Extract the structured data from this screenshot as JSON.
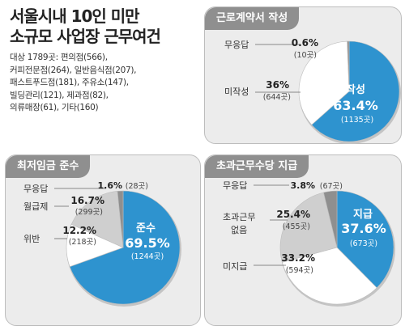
{
  "header": {
    "title_line1": "서울시내 10인 미만",
    "title_line2": "소규모 사업장 근무여건",
    "subtitle_lines": [
      "대상 1789곳: 편의점(566),",
      "커피전문점(264), 일반음식점(207),",
      "패스트푸드점(181), 주유소(147),",
      "빌딩관리(121), 제과점(82),",
      "의류매장(61), 기타(160)"
    ]
  },
  "colors": {
    "accent": "#2e93cf",
    "dark": "#8f8f8f",
    "light": "#cfcfcf",
    "white": "#ffffff"
  },
  "chart_data": [
    {
      "type": "pie",
      "title": "근로계약서 작성",
      "slices": [
        {
          "label": "작성",
          "percent_text": "63.4%",
          "count_text": "(1135곳)",
          "value": 63.4,
          "color": "#2e93cf"
        },
        {
          "label": "미작성",
          "percent_text": "36%",
          "count_text": "(644곳)",
          "value": 36.0,
          "color": "#ffffff"
        },
        {
          "label": "무응답",
          "percent_text": "0.6%",
          "count_text": "(10곳)",
          "value": 0.6,
          "color": "#8f8f8f"
        }
      ]
    },
    {
      "type": "pie",
      "title": "최저임금 준수",
      "slices": [
        {
          "label": "준수",
          "percent_text": "69.5%",
          "count_text": "(1244곳)",
          "value": 69.5,
          "color": "#2e93cf"
        },
        {
          "label": "위반",
          "percent_text": "12.2%",
          "count_text": "(218곳)",
          "value": 12.2,
          "color": "#ffffff"
        },
        {
          "label": "월급제",
          "percent_text": "16.7%",
          "count_text": "(299곳)",
          "value": 16.7,
          "color": "#cfcfcf"
        },
        {
          "label": "무응답",
          "percent_text": "1.6%",
          "count_text": "(28곳)",
          "value": 1.6,
          "color": "#8f8f8f"
        }
      ]
    },
    {
      "type": "pie",
      "title": "초과근무수당 지급",
      "slices": [
        {
          "label": "지급",
          "percent_text": "37.6%",
          "count_text": "(673곳)",
          "value": 37.6,
          "color": "#2e93cf"
        },
        {
          "label": "미지급",
          "percent_text": "33.2%",
          "count_text": "(594곳)",
          "value": 33.2,
          "color": "#ffffff"
        },
        {
          "label": "초과근무 없음",
          "percent_text": "25.4%",
          "count_text": "(455곳)",
          "value": 25.4,
          "color": "#cfcfcf"
        },
        {
          "label": "무응답",
          "percent_text": "3.8%",
          "count_text": "(67곳)",
          "value": 3.8,
          "color": "#8f8f8f"
        }
      ]
    }
  ]
}
